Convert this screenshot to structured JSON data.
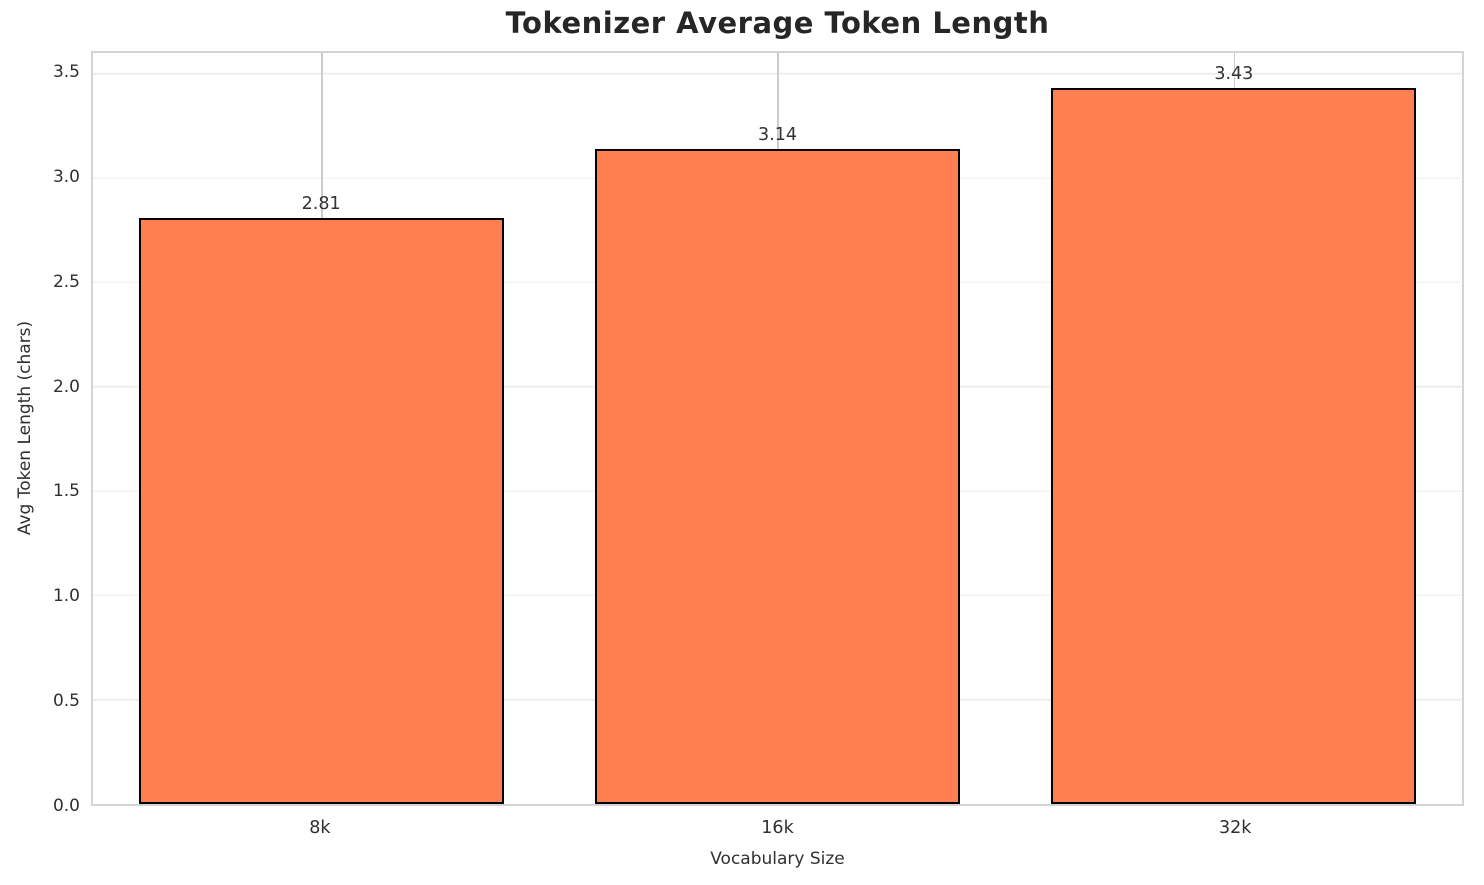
{
  "chart_data": {
    "type": "bar",
    "title": "Tokenizer Average Token Length",
    "xlabel": "Vocabulary Size",
    "ylabel": "Avg Token Length (chars)",
    "categories": [
      "8k",
      "16k",
      "32k"
    ],
    "values": [
      2.81,
      3.14,
      3.43
    ],
    "value_labels": [
      "2.81",
      "3.14",
      "3.43"
    ],
    "yticks": [
      0.0,
      0.5,
      1.0,
      1.5,
      2.0,
      2.5,
      3.0,
      3.5
    ],
    "ytick_labels": [
      "0.0",
      "0.5",
      "1.0",
      "1.5",
      "2.0",
      "2.5",
      "3.0",
      "3.5"
    ],
    "ylim": [
      0,
      3.6
    ],
    "grid": true,
    "legend": false,
    "bar_width_fraction": 0.8,
    "colors": {
      "bar_fill": "#FF7F50",
      "bar_edge": "#000000",
      "spine": "#d4d4d4",
      "hgrid": "#eeeeee",
      "vgrid": "#cccccc",
      "title_text": "#262626",
      "tick_text": "#303030"
    }
  }
}
